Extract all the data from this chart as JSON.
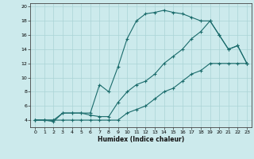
{
  "xlabel": "Humidex (Indice chaleur)",
  "bg_color": "#cceaec",
  "grid_color": "#aad4d6",
  "line_color": "#1a6b6b",
  "xlim": [
    -0.5,
    23.5
  ],
  "ylim": [
    3,
    20.5
  ],
  "xticks": [
    0,
    1,
    2,
    3,
    4,
    5,
    6,
    7,
    8,
    9,
    10,
    11,
    12,
    13,
    14,
    15,
    16,
    17,
    18,
    19,
    20,
    21,
    22,
    23
  ],
  "yticks": [
    4,
    6,
    8,
    10,
    12,
    14,
    16,
    18,
    20
  ],
  "series": [
    {
      "x": [
        0,
        1,
        2,
        3,
        4,
        5,
        6,
        7,
        8,
        9,
        10,
        11,
        12,
        13,
        14,
        15,
        16,
        17,
        18,
        19,
        20,
        21,
        22,
        23
      ],
      "y": [
        4,
        4,
        4,
        5,
        5,
        5,
        5,
        9,
        8,
        11.5,
        15.5,
        18,
        19,
        19.2,
        19.5,
        19.2,
        19,
        18.5,
        18,
        18,
        16,
        14,
        14.5,
        12
      ]
    },
    {
      "x": [
        0,
        1,
        2,
        3,
        4,
        5,
        6,
        7,
        8,
        9,
        10,
        11,
        12,
        13,
        14,
        15,
        16,
        17,
        18,
        19,
        20,
        21,
        22,
        23
      ],
      "y": [
        4,
        4,
        3.8,
        5,
        5,
        5,
        4.7,
        4.5,
        4.5,
        6.5,
        8,
        9,
        9.5,
        10.5,
        12,
        13,
        14,
        15.5,
        16.5,
        18,
        16,
        14,
        14.5,
        12
      ]
    },
    {
      "x": [
        0,
        1,
        2,
        3,
        4,
        5,
        6,
        7,
        8,
        9,
        10,
        11,
        12,
        13,
        14,
        15,
        16,
        17,
        18,
        19,
        20,
        21,
        22,
        23
      ],
      "y": [
        4,
        4,
        4,
        4,
        4,
        4,
        4,
        4,
        4,
        4,
        5,
        5.5,
        6,
        7,
        8,
        8.5,
        9.5,
        10.5,
        11,
        12,
        12,
        12,
        12,
        12
      ]
    }
  ]
}
